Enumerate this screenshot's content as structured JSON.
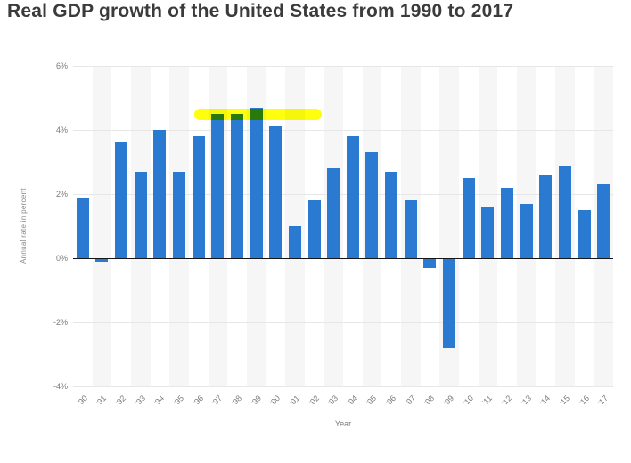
{
  "header": {
    "title": "Real GDP growth of the United States from 1990 to 2017"
  },
  "chart_data": {
    "type": "bar",
    "title": "Real GDP growth of the United States from 1990 to 2017",
    "xlabel": "Year",
    "ylabel": "Annual rate in percent",
    "categories": [
      "'90",
      "'91",
      "'92",
      "'93",
      "'94",
      "'95",
      "'96",
      "'97",
      "'98",
      "'99",
      "'00",
      "'01",
      "'02",
      "'03",
      "'04",
      "'05",
      "'06",
      "'07",
      "'08",
      "'09",
      "'10",
      "'11",
      "'12",
      "'13",
      "'14",
      "'15",
      "'16",
      "'17"
    ],
    "values": [
      1.9,
      -0.1,
      3.6,
      2.7,
      4.0,
      2.7,
      3.8,
      4.5,
      4.5,
      4.7,
      4.1,
      1.0,
      1.8,
      2.8,
      3.8,
      3.3,
      2.7,
      1.8,
      -0.3,
      -2.8,
      2.5,
      1.6,
      2.2,
      1.7,
      2.6,
      2.9,
      1.5,
      2.3
    ],
    "ylim": [
      -4,
      6
    ],
    "yticks": [
      "6%",
      "4%",
      "2%",
      "0%",
      "-2%",
      "-4%"
    ],
    "ytick_values": [
      6,
      4,
      2,
      0,
      -2,
      -4
    ],
    "grid": true,
    "legend": "none",
    "bar_color": "#2a7ad1",
    "stripe_color": "#f6f6f6",
    "highlight": {
      "shape": "marker-stroke",
      "color": "#ffff00",
      "start_col": 6.3,
      "end_col": 12.9,
      "top_percent": 4.67,
      "bottom_percent": 4.3,
      "note": "yellow highlighter stroke over the tops of the 1997-1999 peak bars"
    }
  }
}
